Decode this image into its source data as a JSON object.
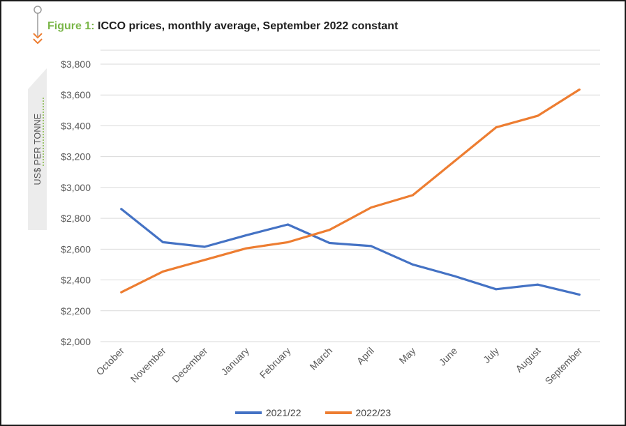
{
  "title": {
    "prefix": "Figure 1:",
    "text": "ICCO prices, monthly average, September 2022 constant"
  },
  "colors": {
    "series_2021": "#4472c4",
    "series_2022": "#ed7d31",
    "figure_prefix": "#7ab648",
    "grid": "#d9d9d9"
  },
  "chart_data": {
    "type": "line",
    "title": "ICCO prices, monthly average, September 2022 constant",
    "ylabel": "US$ PER TONNE",
    "xlabel": "",
    "categories": [
      "October",
      "November",
      "December",
      "January",
      "February",
      "March",
      "April",
      "May",
      "June",
      "July",
      "August",
      "September"
    ],
    "ylim": [
      2000,
      3800
    ],
    "yticks": [
      2000,
      2200,
      2400,
      2600,
      2800,
      3000,
      3200,
      3400,
      3600,
      3800
    ],
    "ytick_labels": [
      "$2,000",
      "$2,200",
      "$2,400",
      "$2,600",
      "$2,800",
      "$3,000",
      "$3,200",
      "$3,400",
      "$3,600",
      "$3,800"
    ],
    "grid": true,
    "legend_position": "bottom",
    "series": [
      {
        "name": "2021/22",
        "color": "#4472c4",
        "values": [
          2860,
          2645,
          2615,
          2690,
          2760,
          2640,
          2620,
          2500,
          2425,
          2340,
          2370,
          2305
        ]
      },
      {
        "name": "2022/23",
        "color": "#ed7d31",
        "values": [
          2320,
          2455,
          2530,
          2605,
          2645,
          2725,
          2870,
          2950,
          3170,
          3390,
          3465,
          3635
        ]
      }
    ]
  }
}
